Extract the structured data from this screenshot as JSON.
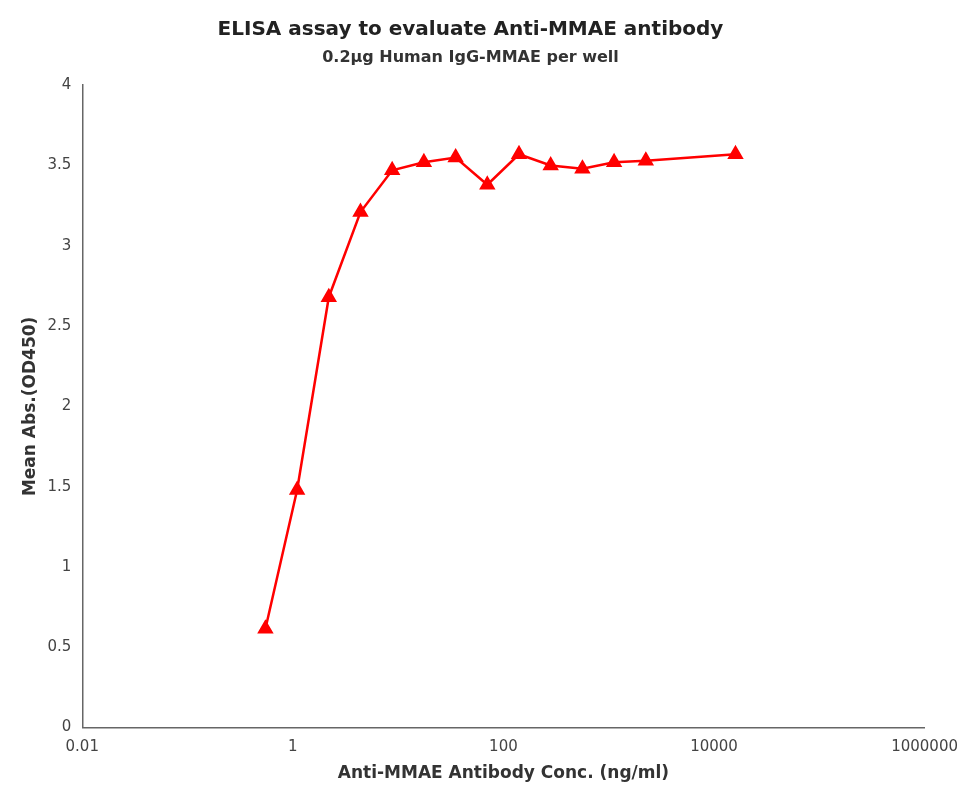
{
  "chart_data": {
    "type": "line",
    "title": "ELISA assay to evaluate Anti-MMAE antibody",
    "subtitle": "0.2μg Human IgG-MMAE per well",
    "xlabel": "Anti-MMAE Antibody Conc. (ng/ml)",
    "ylabel": "Mean Abs.(OD450)",
    "log": "x",
    "x": [
      0.549,
      1.098,
      2.195,
      4.39,
      8.78,
      17.57,
      35.15,
      70.3,
      140.6,
      281.1,
      562.5,
      1125,
      2250,
      16000
    ],
    "values": [
      0.615,
      1.48,
      2.68,
      3.21,
      3.47,
      3.52,
      3.55,
      3.38,
      3.57,
      3.5,
      3.48,
      3.52,
      3.53,
      3.57
    ],
    "color": "#FF0000",
    "marker": "triangle",
    "line_style": "solid",
    "xlim": [
      0.01,
      1000000
    ],
    "xticks": [
      0.01,
      1,
      100,
      10000,
      1000000
    ],
    "ylim": [
      0,
      4
    ],
    "yticks": [
      0,
      0.5,
      1,
      1.5,
      2,
      2.5,
      3,
      3.5,
      4
    ],
    "grid": false
  }
}
